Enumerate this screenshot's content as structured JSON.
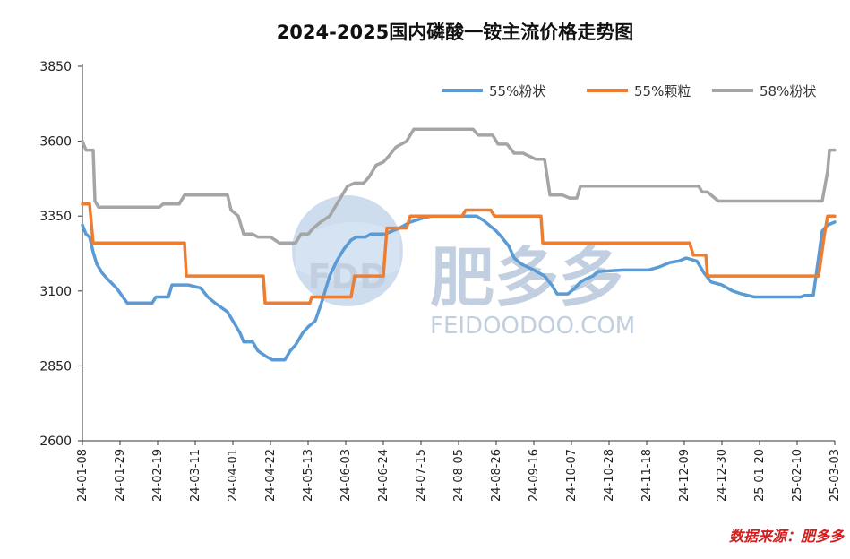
{
  "chart_data": {
    "type": "line",
    "title": "2024-2025国内磷酸一铵主流价格走势图",
    "ylim": [
      2600,
      3850
    ],
    "yticks": [
      2600,
      2850,
      3100,
      3350,
      3600,
      3850
    ],
    "xlim": [
      "24-01-08",
      "25-03-03"
    ],
    "xticks": [
      "24-01-08",
      "24-01-29",
      "24-02-19",
      "24-03-11",
      "24-04-01",
      "24-04-22",
      "24-05-13",
      "24-06-03",
      "24-06-24",
      "24-07-15",
      "24-08-05",
      "24-08-26",
      "24-09-16",
      "24-10-07",
      "24-10-28",
      "24-11-18",
      "24-12-09",
      "24-12-30",
      "25-01-20",
      "25-02-10",
      "25-03-03"
    ],
    "legend_position": "top-right",
    "grid": false,
    "series": [
      {
        "name": "55%粉状",
        "color": "#5b9bd5",
        "points": [
          [
            "24-01-08",
            3320
          ],
          [
            "24-01-10",
            3290
          ],
          [
            "24-01-12",
            3280
          ],
          [
            "24-01-14",
            3230
          ],
          [
            "24-01-16",
            3190
          ],
          [
            "24-01-19",
            3160
          ],
          [
            "24-01-22",
            3140
          ],
          [
            "24-01-27",
            3110
          ],
          [
            "24-02-02",
            3060
          ],
          [
            "24-02-16",
            3060
          ],
          [
            "24-02-18",
            3080
          ],
          [
            "24-02-25",
            3080
          ],
          [
            "24-02-27",
            3120
          ],
          [
            "24-03-07",
            3120
          ],
          [
            "24-03-14",
            3110
          ],
          [
            "24-03-18",
            3080
          ],
          [
            "24-03-22",
            3060
          ],
          [
            "24-03-29",
            3030
          ],
          [
            "24-04-01",
            3000
          ],
          [
            "24-04-05",
            2960
          ],
          [
            "24-04-07",
            2930
          ],
          [
            "24-04-12",
            2930
          ],
          [
            "24-04-15",
            2900
          ],
          [
            "24-04-20",
            2880
          ],
          [
            "24-04-23",
            2870
          ],
          [
            "24-04-30",
            2870
          ],
          [
            "24-05-03",
            2900
          ],
          [
            "24-05-06",
            2920
          ],
          [
            "24-05-10",
            2960
          ],
          [
            "24-05-13",
            2980
          ],
          [
            "24-05-17",
            3000
          ],
          [
            "24-05-21",
            3070
          ],
          [
            "24-05-25",
            3150
          ],
          [
            "24-05-29",
            3200
          ],
          [
            "24-06-02",
            3240
          ],
          [
            "24-06-06",
            3270
          ],
          [
            "24-06-09",
            3280
          ],
          [
            "24-06-14",
            3280
          ],
          [
            "24-06-17",
            3290
          ],
          [
            "24-06-25",
            3290
          ],
          [
            "24-06-29",
            3300
          ],
          [
            "24-07-03",
            3310
          ],
          [
            "24-07-09",
            3330
          ],
          [
            "24-07-17",
            3345
          ],
          [
            "24-07-21",
            3350
          ],
          [
            "24-08-15",
            3350
          ],
          [
            "24-08-19",
            3335
          ],
          [
            "24-08-22",
            3320
          ],
          [
            "24-08-26",
            3300
          ],
          [
            "24-08-29",
            3280
          ],
          [
            "24-09-02",
            3250
          ],
          [
            "24-09-05",
            3210
          ],
          [
            "24-09-09",
            3190
          ],
          [
            "24-09-16",
            3170
          ],
          [
            "24-09-22",
            3150
          ],
          [
            "24-09-26",
            3120
          ],
          [
            "24-09-29",
            3090
          ],
          [
            "24-10-05",
            3090
          ],
          [
            "24-10-09",
            3110
          ],
          [
            "24-10-12",
            3130
          ],
          [
            "24-10-15",
            3140
          ],
          [
            "24-10-19",
            3150
          ],
          [
            "24-10-22",
            3165
          ],
          [
            "24-11-05",
            3170
          ],
          [
            "24-11-19",
            3170
          ],
          [
            "24-11-25",
            3180
          ],
          [
            "24-12-01",
            3195
          ],
          [
            "24-12-06",
            3200
          ],
          [
            "24-12-10",
            3210
          ],
          [
            "24-12-16",
            3200
          ],
          [
            "24-12-20",
            3160
          ],
          [
            "24-12-24",
            3130
          ],
          [
            "24-12-30",
            3120
          ],
          [
            "25-01-05",
            3100
          ],
          [
            "25-01-10",
            3090
          ],
          [
            "25-01-17",
            3080
          ],
          [
            "25-02-12",
            3080
          ],
          [
            "25-02-14",
            3085
          ],
          [
            "25-02-19",
            3085
          ],
          [
            "25-02-24",
            3300
          ],
          [
            "25-02-27",
            3320
          ],
          [
            "25-03-03",
            3330
          ]
        ]
      },
      {
        "name": "55%颗粒",
        "color": "#ed7d31",
        "points": [
          [
            "24-01-08",
            3390
          ],
          [
            "24-01-12",
            3390
          ],
          [
            "24-01-14",
            3260
          ],
          [
            "24-03-05",
            3260
          ],
          [
            "24-03-06",
            3150
          ],
          [
            "24-04-18",
            3150
          ],
          [
            "24-04-19",
            3060
          ],
          [
            "24-05-14",
            3060
          ],
          [
            "24-05-15",
            3080
          ],
          [
            "24-05-25",
            3080
          ],
          [
            "24-05-27",
            3080
          ],
          [
            "24-06-06",
            3080
          ],
          [
            "24-06-08",
            3150
          ],
          [
            "24-06-24",
            3150
          ],
          [
            "24-06-26",
            3310
          ],
          [
            "24-07-07",
            3310
          ],
          [
            "24-07-09",
            3350
          ],
          [
            "24-08-07",
            3350
          ],
          [
            "24-08-09",
            3370
          ],
          [
            "24-08-23",
            3370
          ],
          [
            "24-08-25",
            3350
          ],
          [
            "24-09-20",
            3350
          ],
          [
            "24-09-21",
            3260
          ],
          [
            "24-12-12",
            3260
          ],
          [
            "24-12-14",
            3220
          ],
          [
            "24-12-21",
            3220
          ],
          [
            "24-12-22",
            3150
          ],
          [
            "25-02-22",
            3150
          ],
          [
            "25-02-25",
            3280
          ],
          [
            "25-02-27",
            3350
          ],
          [
            "25-03-03",
            3350
          ]
        ]
      },
      {
        "name": "58%粉状",
        "color": "#a5a5a5",
        "points": [
          [
            "24-01-08",
            3600
          ],
          [
            "24-01-10",
            3570
          ],
          [
            "24-01-14",
            3570
          ],
          [
            "24-01-15",
            3400
          ],
          [
            "24-01-17",
            3380
          ],
          [
            "24-02-20",
            3380
          ],
          [
            "24-02-22",
            3390
          ],
          [
            "24-03-02",
            3390
          ],
          [
            "24-03-05",
            3420
          ],
          [
            "24-03-29",
            3420
          ],
          [
            "24-03-31",
            3370
          ],
          [
            "24-04-04",
            3350
          ],
          [
            "24-04-07",
            3290
          ],
          [
            "24-04-12",
            3290
          ],
          [
            "24-04-15",
            3280
          ],
          [
            "24-04-22",
            3280
          ],
          [
            "24-04-27",
            3260
          ],
          [
            "24-05-06",
            3260
          ],
          [
            "24-05-09",
            3290
          ],
          [
            "24-05-13",
            3290
          ],
          [
            "24-05-16",
            3310
          ],
          [
            "24-05-20",
            3330
          ],
          [
            "24-05-25",
            3350
          ],
          [
            "24-05-30",
            3400
          ],
          [
            "24-06-04",
            3450
          ],
          [
            "24-06-08",
            3460
          ],
          [
            "24-06-13",
            3460
          ],
          [
            "24-06-16",
            3480
          ],
          [
            "24-06-20",
            3520
          ],
          [
            "24-06-24",
            3530
          ],
          [
            "24-06-27",
            3550
          ],
          [
            "24-07-01",
            3580
          ],
          [
            "24-07-07",
            3600
          ],
          [
            "24-07-11",
            3640
          ],
          [
            "24-08-13",
            3640
          ],
          [
            "24-08-16",
            3620
          ],
          [
            "24-08-24",
            3620
          ],
          [
            "24-08-27",
            3590
          ],
          [
            "24-09-01",
            3590
          ],
          [
            "24-09-05",
            3560
          ],
          [
            "24-09-10",
            3560
          ],
          [
            "24-09-17",
            3540
          ],
          [
            "24-09-22",
            3540
          ],
          [
            "24-09-25",
            3420
          ],
          [
            "24-10-02",
            3420
          ],
          [
            "24-10-06",
            3410
          ],
          [
            "24-10-10",
            3410
          ],
          [
            "24-10-12",
            3450
          ],
          [
            "24-12-17",
            3450
          ],
          [
            "24-12-19",
            3430
          ],
          [
            "24-12-22",
            3430
          ],
          [
            "24-12-28",
            3400
          ],
          [
            "25-02-24",
            3400
          ],
          [
            "25-02-27",
            3500
          ],
          [
            "25-02-28",
            3570
          ],
          [
            "25-03-03",
            3570
          ]
        ]
      }
    ]
  },
  "watermark": {
    "logo_text": "FDD",
    "brand": "肥多多",
    "url": "FEIDOODOO.COM"
  },
  "source_note": "数据来源：肥多多"
}
